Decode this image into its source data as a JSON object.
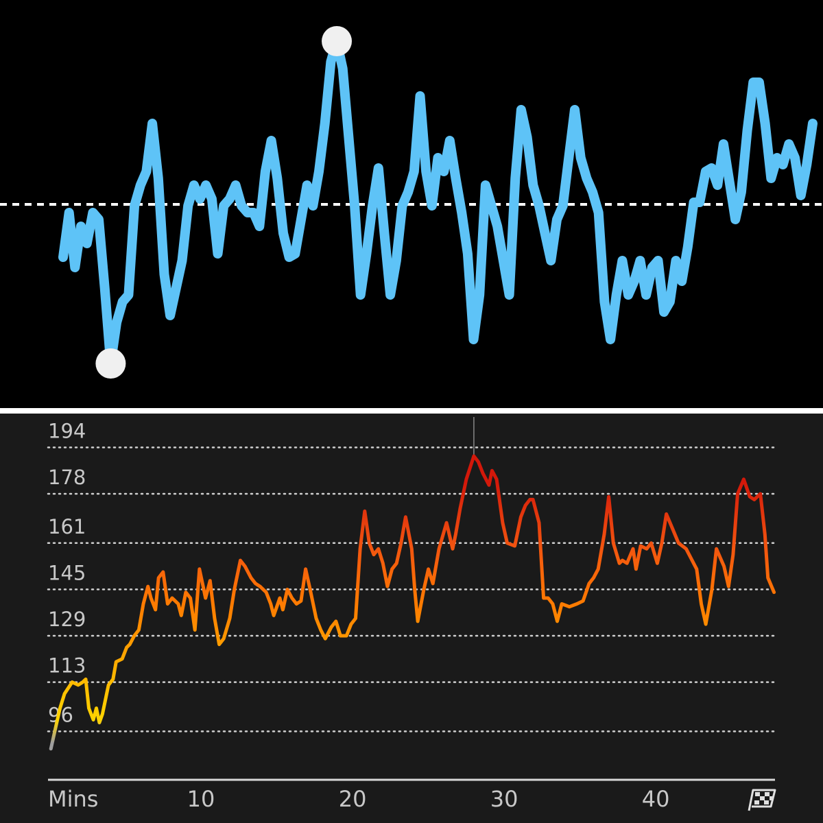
{
  "chart_data": [
    {
      "type": "line",
      "values": [
        225,
        290,
        210,
        270,
        245,
        290,
        280,
        180,
        70,
        130,
        160,
        170,
        300,
        330,
        350,
        420,
        340,
        200,
        140,
        180,
        220,
        300,
        330,
        310,
        330,
        310,
        230,
        300,
        310,
        330,
        300,
        290,
        290,
        270,
        350,
        395,
        340,
        260,
        225,
        230,
        280,
        330,
        300,
        350,
        420,
        510,
        540,
        500,
        400,
        300,
        170,
        230,
        300,
        355,
        260,
        170,
        220,
        300,
        320,
        350,
        460,
        350,
        300,
        370,
        350,
        395,
        340,
        290,
        230,
        105,
        170,
        330,
        300,
        270,
        220,
        170,
        340,
        440,
        400,
        330,
        300,
        260,
        220,
        280,
        300,
        370,
        440,
        370,
        340,
        320,
        290,
        160,
        105,
        170,
        220,
        170,
        190,
        220,
        170,
        210,
        220,
        145,
        160,
        220,
        190,
        240,
        305,
        305,
        350,
        355,
        330,
        390,
        335,
        280,
        320,
        410,
        480,
        480,
        420,
        340,
        370,
        360,
        390,
        370,
        315,
        360,
        420
      ],
      "ylim": [
        0,
        600
      ],
      "reference_line": 302,
      "color": "#5ec3f7",
      "marker_color": "#f0f0f0"
    },
    {
      "type": "line",
      "x_label": "Mins",
      "x": [
        0.1,
        0.4,
        0.7,
        1.0,
        1.5,
        1.9,
        2.2,
        2.4,
        2.6,
        2.9,
        3.1,
        3.3,
        3.5,
        3.9,
        4.2,
        4.4,
        4.8,
        5.1,
        5.3,
        5.6,
        5.9,
        6.2,
        6.5,
        6.7,
        7.0,
        7.2,
        7.5,
        7.8,
        8.1,
        8.5,
        8.7,
        9.0,
        9.3,
        9.6,
        9.9,
        10.1,
        10.3,
        10.6,
        10.9,
        11.2,
        11.5,
        11.9,
        12.2,
        12.6,
        12.9,
        13.3,
        13.6,
        13.9,
        14.3,
        14.6,
        14.8,
        15.2,
        15.4,
        15.7,
        16.0,
        16.3,
        16.6,
        16.9,
        17.2,
        17.6,
        17.9,
        18.2,
        18.6,
        18.9,
        19.2,
        19.6,
        19.9,
        20.2,
        20.5,
        20.8,
        21.1,
        21.4,
        21.7,
        22.0,
        22.3,
        22.6,
        22.9,
        23.2,
        23.5,
        23.9,
        24.1,
        24.3,
        24.7,
        25.0,
        25.3,
        25.7,
        26.2,
        26.6,
        26.8,
        27.1,
        27.5,
        28.0,
        28.3,
        28.6,
        29.0,
        29.2,
        29.5,
        29.9,
        30.2,
        30.7,
        31.1,
        31.4,
        31.7,
        31.9,
        32.3,
        32.6,
        32.9,
        33.2,
        33.5,
        33.8,
        34.3,
        34.8,
        35.2,
        35.6,
        35.9,
        36.2,
        36.6,
        36.9,
        37.2,
        37.6,
        37.8,
        38.1,
        38.5,
        38.7,
        39.0,
        39.4,
        39.7,
        40.1,
        40.4,
        40.7,
        41.1,
        41.5,
        42.0,
        42.4,
        42.7,
        43.0,
        43.3,
        43.7,
        44.0,
        44.5,
        44.8,
        45.1,
        45.4,
        45.8,
        46.2,
        46.5,
        46.9,
        47.2,
        47.4,
        47.8
      ],
      "values": [
        90,
        97,
        104,
        109,
        113,
        112,
        113,
        114,
        104,
        100,
        104,
        99,
        102,
        112,
        114,
        120,
        121,
        125,
        126,
        129,
        131,
        140,
        146,
        142,
        138,
        149,
        151,
        140,
        142,
        140,
        136,
        144,
        142,
        131,
        152,
        147,
        142,
        148,
        135,
        126,
        128,
        135,
        145,
        155,
        153,
        149,
        147,
        146,
        144,
        140,
        136,
        142,
        138,
        145,
        142,
        140,
        141,
        152,
        145,
        135,
        131,
        128,
        132,
        134,
        129,
        129,
        133,
        135,
        159,
        172,
        161,
        157,
        159,
        154,
        146,
        152,
        154,
        161,
        170,
        159,
        145,
        134,
        145,
        152,
        147,
        159,
        168,
        159,
        164,
        173,
        183,
        191,
        189,
        185,
        181,
        186,
        183,
        168,
        161,
        160,
        170,
        174,
        176,
        176,
        168,
        142,
        142,
        140,
        134,
        140,
        139,
        140,
        141,
        147,
        149,
        152,
        164,
        177,
        161,
        154,
        155,
        154,
        159,
        152,
        160,
        159,
        161,
        154,
        161,
        171,
        166,
        161,
        159,
        155,
        152,
        140,
        133,
        145,
        159,
        153,
        146,
        157,
        178,
        183,
        177,
        176,
        178,
        164,
        149,
        144
      ],
      "xlim": [
        0,
        48
      ],
      "ylim": [
        80,
        200
      ],
      "xticks": [
        10,
        20,
        30,
        40
      ],
      "yticks": [
        96,
        113,
        129,
        145,
        161,
        178,
        194
      ],
      "grid": true,
      "color_stops": [
        {
          "value": 92,
          "color": "#9e9e9e"
        },
        {
          "value": 100,
          "color": "#ffd400"
        },
        {
          "value": 118,
          "color": "#ffb000"
        },
        {
          "value": 138,
          "color": "#ff7f00"
        },
        {
          "value": 160,
          "color": "#f25410"
        },
        {
          "value": 182,
          "color": "#d3180a"
        }
      ]
    }
  ]
}
